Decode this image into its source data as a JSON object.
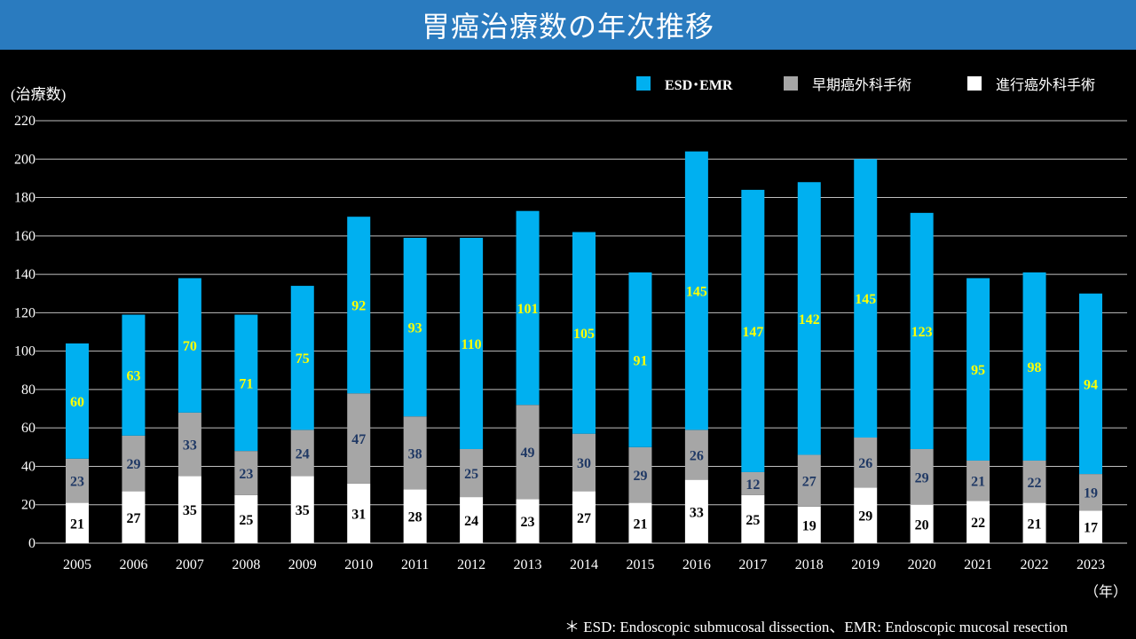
{
  "title": "胃癌治療数の年次推移",
  "footnote": "＊ ESD: Endoscopic submucosal dissection、EMR: Endoscopic mucosal resection",
  "chart_data": {
    "type": "bar",
    "stacked": true,
    "title": "胃癌治療数の年次推移",
    "ylabel": "(治療数)",
    "xlabel": "（年）",
    "ylim": [
      0,
      220
    ],
    "yticks": [
      0,
      20,
      40,
      60,
      80,
      100,
      120,
      140,
      160,
      180,
      200,
      220
    ],
    "grid": true,
    "legend_position": "top-right",
    "categories": [
      "2005",
      "2006",
      "2007",
      "2008",
      "2009",
      "2010",
      "2011",
      "2012",
      "2013",
      "2014",
      "2015",
      "2016",
      "2017",
      "2018",
      "2019",
      "2020",
      "2021",
      "2022",
      "2023"
    ],
    "series": [
      {
        "name": "進行癌外科手術",
        "color": "#ffffff",
        "label_color": "#000000",
        "values": [
          21,
          27,
          35,
          25,
          35,
          31,
          28,
          24,
          23,
          27,
          21,
          33,
          25,
          19,
          29,
          20,
          22,
          21,
          17
        ]
      },
      {
        "name": "早期癌外科手術",
        "color": "#a6a6a6",
        "label_color": "#1f3864",
        "values": [
          23,
          29,
          33,
          23,
          24,
          47,
          38,
          25,
          49,
          30,
          29,
          26,
          12,
          27,
          26,
          29,
          21,
          22,
          19
        ]
      },
      {
        "name": "ESD･EMR",
        "color": "#00b0f0",
        "label_color": "#ffff00",
        "values": [
          60,
          63,
          70,
          71,
          75,
          92,
          93,
          110,
          101,
          105,
          91,
          145,
          147,
          142,
          145,
          123,
          95,
          98,
          94
        ]
      }
    ]
  }
}
